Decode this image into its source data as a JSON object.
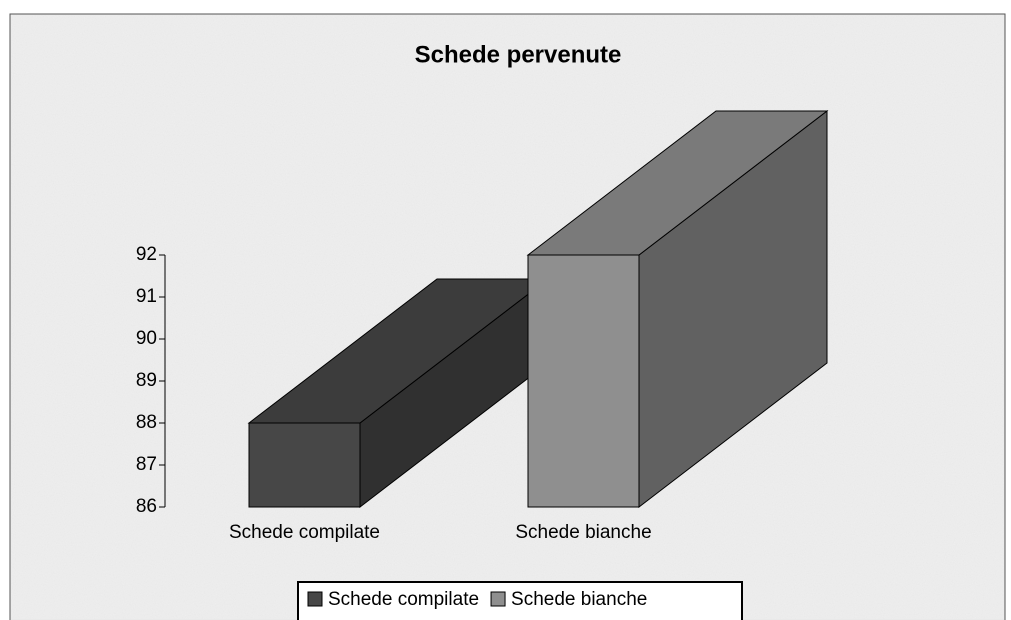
{
  "chart_data": {
    "type": "bar3d",
    "title": "Schede pervenute",
    "categories": [
      "Schede compilate",
      "Schede bianche"
    ],
    "series": [
      {
        "name": "Schede compilate",
        "color": "#474747",
        "values": [
          88,
          null
        ]
      },
      {
        "name": "Schede bianche",
        "color": "#8f8f8f",
        "values": [
          null,
          92
        ]
      }
    ],
    "ylim": [
      86,
      92
    ],
    "yticks": [
      86,
      87,
      88,
      89,
      90,
      91,
      92
    ],
    "legend": "bottom"
  }
}
